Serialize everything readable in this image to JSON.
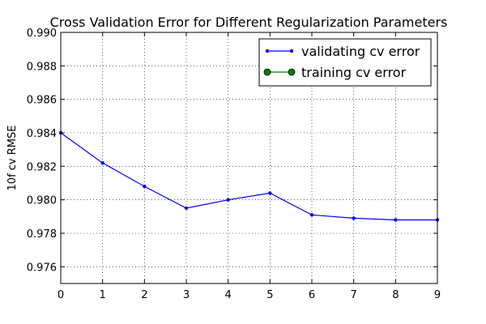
{
  "chart_data": {
    "type": "line",
    "title": "Cross Validation Error for Different Regularization Parameters",
    "xlabel": "",
    "ylabel": "10f cv RMSE",
    "xlim": [
      0,
      9
    ],
    "ylim": [
      0.975,
      0.99
    ],
    "x_ticks": [
      0,
      1,
      2,
      3,
      4,
      5,
      6,
      7,
      8,
      9
    ],
    "y_ticks": [
      0.976,
      0.978,
      0.98,
      0.982,
      0.984,
      0.986,
      0.988,
      0.99
    ],
    "y_tick_labels": [
      "0.976",
      "0.978",
      "0.980",
      "0.982",
      "0.984",
      "0.986",
      "0.988",
      "0.990"
    ],
    "grid": true,
    "legend_position": "top-right",
    "series": [
      {
        "name": "validating cv error",
        "color": "#0000ff",
        "marker": "dot",
        "x": [
          0,
          1,
          2,
          3,
          4,
          5,
          6,
          7,
          8,
          9
        ],
        "values": [
          0.984,
          0.9822,
          0.9808,
          0.9795,
          0.98,
          0.9804,
          0.9791,
          0.9789,
          0.9788,
          0.9788
        ]
      },
      {
        "name": "training cv error",
        "color": "#008000",
        "marker": "circle",
        "x": [],
        "values": []
      }
    ]
  }
}
